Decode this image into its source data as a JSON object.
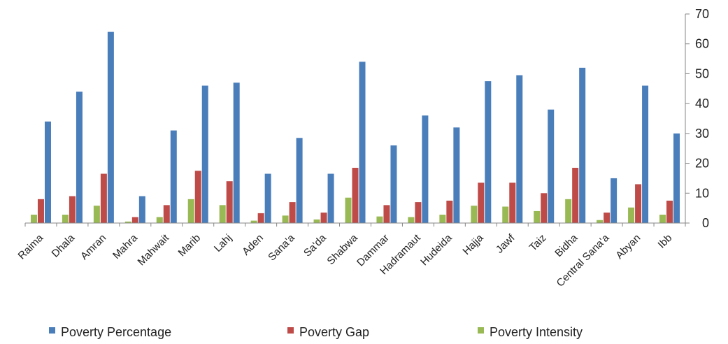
{
  "chart_data": {
    "type": "bar",
    "categories": [
      "Raima",
      "Dhala",
      "Amran",
      "Mahra",
      "Mahwait",
      "Marib",
      "Lahj",
      "Aden",
      "Sana'a",
      "Sa'da",
      "Shabwa",
      "Dammar",
      "Hadramaut",
      "Hudeida",
      "Hajja",
      "Jawf",
      "Taiz",
      "Bidha",
      "Central Sana'a",
      "Abyan",
      "Ibb"
    ],
    "series": [
      {
        "name": "Poverty Percentage",
        "color": "#4a7ebb",
        "values": [
          34,
          44,
          64,
          9,
          31,
          46,
          47,
          16.5,
          28.5,
          16.5,
          54,
          26,
          36,
          32,
          47.5,
          49.5,
          38,
          52,
          15,
          46,
          30
        ]
      },
      {
        "name": "Poverty Gap",
        "color": "#be4b48",
        "values": [
          8,
          9,
          16.5,
          2,
          6,
          17.5,
          14,
          3.3,
          7,
          3.5,
          18.5,
          6,
          7,
          7.5,
          13.5,
          13.5,
          10,
          18.5,
          3.5,
          13,
          7.5
        ]
      },
      {
        "name": "Poverty Intensity",
        "color": "#98b954",
        "values": [
          2.8,
          2.8,
          5.8,
          0.5,
          2,
          8,
          6,
          0.8,
          2.5,
          1.2,
          8.5,
          2.2,
          2,
          2.8,
          5.8,
          5.5,
          4,
          8,
          1,
          5.2,
          2.8
        ]
      }
    ],
    "ylim": [
      0,
      70
    ],
    "yticks": [
      0,
      10,
      20,
      30,
      40,
      50,
      60,
      70
    ],
    "y_axis_side": "right",
    "grid": false,
    "legend_position": "bottom"
  }
}
